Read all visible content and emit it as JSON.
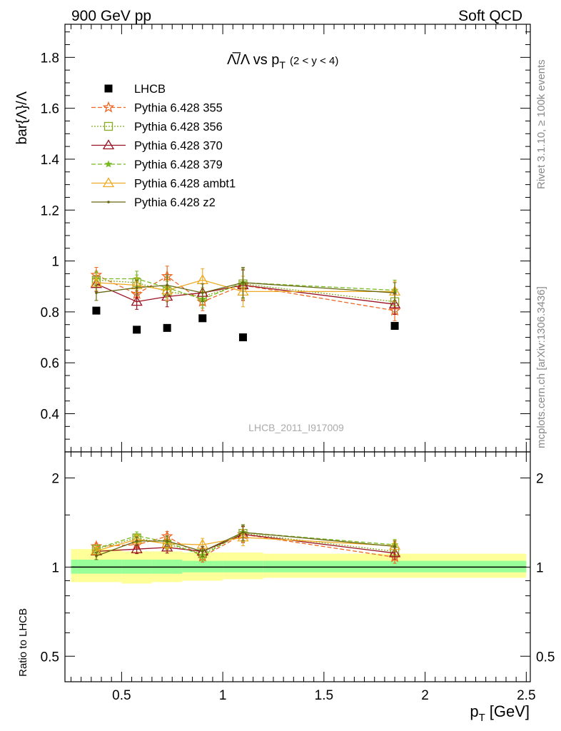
{
  "header": {
    "left": "900 GeV pp",
    "right": "Soft QCD"
  },
  "side_labels": {
    "rivet": "Rivet 3.1.10, ≥ 100k events",
    "mcplots": "mcplots.cern.ch [arXiv:1306.3436]"
  },
  "watermark": "LHCB_2011_I917009",
  "chart_data": [
    {
      "type": "scatter",
      "panel": "main",
      "title_main": "Λ̅/Λ vs p",
      "title_sub": "T",
      "title_range": "(2 < y < 4)",
      "ylabel": "bar{Λ}/Λ",
      "xlim": [
        0.22,
        2.52
      ],
      "ylim": [
        0.25,
        1.93
      ],
      "yticks": [
        0.4,
        0.6,
        0.8,
        1.0,
        1.2,
        1.4,
        1.6,
        1.8
      ],
      "ytick_labels": [
        "0.4",
        "0.6",
        "0.8",
        "1",
        "1.2",
        "1.4",
        "1.6",
        "1.8"
      ],
      "legend_position": "top-left",
      "series": [
        {
          "name": "LHCB",
          "color": "#000000",
          "marker": "square",
          "dash": "none",
          "x": [
            0.375,
            0.575,
            0.725,
            0.9,
            1.1,
            1.85
          ],
          "y": [
            0.805,
            0.73,
            0.737,
            0.775,
            0.7,
            0.745
          ],
          "err": [
            0.01,
            0.01,
            0.01,
            0.01,
            0.01,
            0.01
          ]
        },
        {
          "name": "Pythia 6.428 355",
          "color": "#ee6622",
          "marker": "star",
          "dash": "6,3",
          "x": [
            0.375,
            0.575,
            0.725,
            0.9,
            1.1,
            1.85
          ],
          "y": [
            0.945,
            0.87,
            0.94,
            0.84,
            0.905,
            0.805
          ],
          "err": [
            0.03,
            0.03,
            0.04,
            0.035,
            0.06,
            0.04
          ]
        },
        {
          "name": "Pythia 6.428 356",
          "color": "#88aa22",
          "marker": "square-open",
          "dash": "2,2",
          "x": [
            0.375,
            0.575,
            0.725,
            0.9,
            1.1,
            1.85
          ],
          "y": [
            0.925,
            0.915,
            0.88,
            0.86,
            0.91,
            0.84
          ],
          "err": [
            0.03,
            0.03,
            0.04,
            0.035,
            0.06,
            0.04
          ]
        },
        {
          "name": "Pythia 6.428 370",
          "color": "#991122",
          "marker": "triangle-open",
          "dash": "none",
          "x": [
            0.375,
            0.575,
            0.725,
            0.9,
            1.1,
            1.85
          ],
          "y": [
            0.91,
            0.84,
            0.86,
            0.875,
            0.905,
            0.83
          ],
          "err": [
            0.03,
            0.03,
            0.04,
            0.035,
            0.06,
            0.04
          ]
        },
        {
          "name": "Pythia 6.428 379",
          "color": "#77bb22",
          "marker": "star-small",
          "dash": "6,3",
          "x": [
            0.375,
            0.575,
            0.725,
            0.9,
            1.1,
            1.85
          ],
          "y": [
            0.93,
            0.93,
            0.895,
            0.85,
            0.915,
            0.885
          ],
          "err": [
            0.03,
            0.03,
            0.04,
            0.035,
            0.06,
            0.04
          ]
        },
        {
          "name": "Pythia 6.428 ambt1",
          "color": "#eeaa22",
          "marker": "triangle-open",
          "dash": "none",
          "x": [
            0.375,
            0.575,
            0.725,
            0.9,
            1.1,
            1.85
          ],
          "y": [
            0.915,
            0.905,
            0.885,
            0.925,
            0.88,
            0.88
          ],
          "err": [
            0.03,
            0.03,
            0.04,
            0.045,
            0.06,
            0.04
          ]
        },
        {
          "name": "Pythia 6.428 z2",
          "color": "#666611",
          "marker": "dot",
          "dash": "none",
          "x": [
            0.375,
            0.575,
            0.725,
            0.9,
            1.1,
            1.85
          ],
          "y": [
            0.875,
            0.895,
            0.905,
            0.875,
            0.915,
            0.875
          ],
          "err": [
            0.03,
            0.03,
            0.04,
            0.035,
            0.06,
            0.04
          ]
        }
      ]
    },
    {
      "type": "scatter",
      "panel": "ratio",
      "xlabel_main": "p",
      "xlabel_sub": "T",
      "xlabel_unit": "[GeV]",
      "ylabel": "Ratio to LHCB",
      "xlim": [
        0.22,
        2.52
      ],
      "ylim": [
        0.41,
        2.45
      ],
      "log_y": true,
      "xticks": [
        0.5,
        1.0,
        1.5,
        2.0,
        2.5
      ],
      "xtick_labels": [
        "0.5",
        "1",
        "1.5",
        "2",
        "2.5"
      ],
      "yticks": [
        0.5,
        1,
        2
      ],
      "ytick_labels": [
        "0.5",
        "1",
        "2"
      ],
      "bands": {
        "edges": [
          0.25,
          0.5,
          0.65,
          0.8,
          1.0,
          1.2,
          2.5
        ],
        "inner": [
          [
            0.95,
            1.06
          ],
          [
            0.95,
            1.06
          ],
          [
            0.95,
            1.06
          ],
          [
            0.96,
            1.05
          ],
          [
            0.96,
            1.05
          ],
          [
            0.96,
            1.05
          ]
        ],
        "outer": [
          [
            0.89,
            1.15
          ],
          [
            0.88,
            1.13
          ],
          [
            0.89,
            1.13
          ],
          [
            0.9,
            1.12
          ],
          [
            0.91,
            1.12
          ],
          [
            0.92,
            1.11
          ]
        ],
        "inner_color": "#99ff99",
        "outer_color": "#ffff99"
      },
      "series": [
        {
          "name": "Pythia 6.428 355",
          "color": "#ee6622",
          "marker": "star",
          "dash": "6,3",
          "x": [
            0.375,
            0.575,
            0.725,
            0.9,
            1.1,
            1.85
          ],
          "y": [
            1.175,
            1.19,
            1.27,
            1.085,
            1.29,
            1.08
          ],
          "err": [
            0.03,
            0.04,
            0.05,
            0.045,
            0.08,
            0.05
          ]
        },
        {
          "name": "Pythia 6.428 356",
          "color": "#88aa22",
          "marker": "square-open",
          "dash": "2,2",
          "x": [
            0.375,
            0.575,
            0.725,
            0.9,
            1.1,
            1.85
          ],
          "y": [
            1.15,
            1.255,
            1.195,
            1.11,
            1.3,
            1.13
          ],
          "err": [
            0.03,
            0.04,
            0.05,
            0.045,
            0.08,
            0.05
          ]
        },
        {
          "name": "Pythia 6.428 370",
          "color": "#991122",
          "marker": "triangle-open",
          "dash": "none",
          "x": [
            0.375,
            0.575,
            0.725,
            0.9,
            1.1,
            1.85
          ],
          "y": [
            1.13,
            1.15,
            1.165,
            1.13,
            1.29,
            1.115
          ],
          "err": [
            0.03,
            0.04,
            0.05,
            0.045,
            0.08,
            0.05
          ]
        },
        {
          "name": "Pythia 6.428 379",
          "color": "#77bb22",
          "marker": "star-small",
          "dash": "6,3",
          "x": [
            0.375,
            0.575,
            0.725,
            0.9,
            1.1,
            1.85
          ],
          "y": [
            1.155,
            1.275,
            1.215,
            1.095,
            1.31,
            1.19
          ],
          "err": [
            0.03,
            0.04,
            0.05,
            0.045,
            0.08,
            0.05
          ]
        },
        {
          "name": "Pythia 6.428 ambt1",
          "color": "#eeaa22",
          "marker": "triangle-open",
          "dash": "none",
          "x": [
            0.375,
            0.575,
            0.725,
            0.9,
            1.1,
            1.85
          ],
          "y": [
            1.135,
            1.24,
            1.2,
            1.19,
            1.26,
            1.18
          ],
          "err": [
            0.03,
            0.04,
            0.05,
            0.06,
            0.08,
            0.05
          ]
        },
        {
          "name": "Pythia 6.428 z2",
          "color": "#666611",
          "marker": "dot",
          "dash": "none",
          "x": [
            0.375,
            0.575,
            0.725,
            0.9,
            1.1,
            1.85
          ],
          "y": [
            1.09,
            1.225,
            1.225,
            1.13,
            1.31,
            1.175
          ],
          "err": [
            0.03,
            0.04,
            0.05,
            0.045,
            0.08,
            0.05
          ]
        }
      ]
    }
  ]
}
